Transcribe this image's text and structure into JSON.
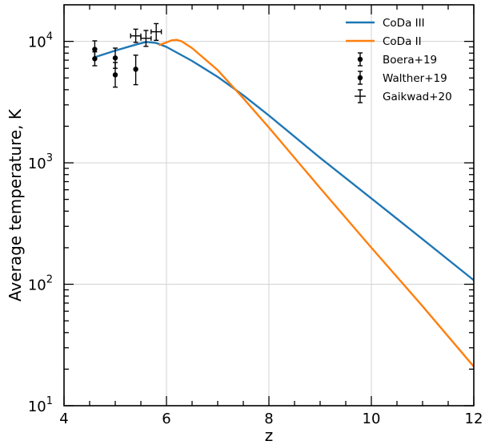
{
  "chart_data": {
    "type": "line",
    "xlabel": "z",
    "ylabel": "Average temperature, K",
    "xlim": [
      4,
      12
    ],
    "ylim": [
      10,
      20000
    ],
    "yscale": "log",
    "grid": true,
    "legend_position": "top-right",
    "xticks": [
      4,
      6,
      8,
      10,
      12
    ],
    "yticks": [
      {
        "value": 10,
        "base": "10",
        "exp": "1"
      },
      {
        "value": 100,
        "base": "10",
        "exp": "2"
      },
      {
        "value": 1000,
        "base": "10",
        "exp": "3"
      },
      {
        "value": 10000,
        "base": "10",
        "exp": "4"
      }
    ],
    "series": [
      {
        "name": "CoDa III",
        "kind": "line",
        "color": "#1f77b4",
        "x": [
          4.6,
          5.0,
          5.4,
          5.6,
          5.8,
          6.0,
          6.5,
          7.0,
          7.5,
          8.0,
          9.0,
          10.0,
          11.0,
          12.0
        ],
        "y": [
          7400,
          8400,
          9400,
          9900,
          9700,
          9000,
          6900,
          5100,
          3600,
          2450,
          1100,
          510,
          235,
          108
        ]
      },
      {
        "name": "CoDa II",
        "kind": "line",
        "color": "#ff7f0e",
        "x": [
          5.85,
          6.0,
          6.1,
          6.2,
          6.3,
          6.5,
          7.0,
          7.5,
          8.0,
          9.0,
          10.0,
          11.0,
          12.0
        ],
        "y": [
          9300,
          9800,
          10200,
          10300,
          10000,
          8800,
          5800,
          3400,
          1950,
          620,
          200,
          66,
          21
        ]
      },
      {
        "name": "Boera+19",
        "kind": "errorbar",
        "color": "#000000",
        "x": [
          4.6,
          5.0
        ],
        "y": [
          8600,
          7300
        ],
        "yerr_low": [
          1400,
          1300
        ],
        "yerr_high": [
          1500,
          1500
        ]
      },
      {
        "name": "Walther+19",
        "kind": "errorbar",
        "color": "#000000",
        "x": [
          4.6,
          5.0,
          5.4
        ],
        "y": [
          7200,
          5300,
          5900
        ],
        "yerr_low": [
          900,
          1100,
          1500
        ],
        "yerr_high": [
          1000,
          1400,
          1800
        ]
      },
      {
        "name": "Gaikwad+20",
        "kind": "errorbar-xy",
        "color": "#000000",
        "x": [
          5.4,
          5.6,
          5.8
        ],
        "y": [
          11100,
          10600,
          12000
        ],
        "xerr": [
          0.1,
          0.1,
          0.1
        ],
        "yerr_low": [
          1300,
          1500,
          1800
        ],
        "yerr_high": [
          1500,
          1700,
          2000
        ]
      }
    ]
  }
}
